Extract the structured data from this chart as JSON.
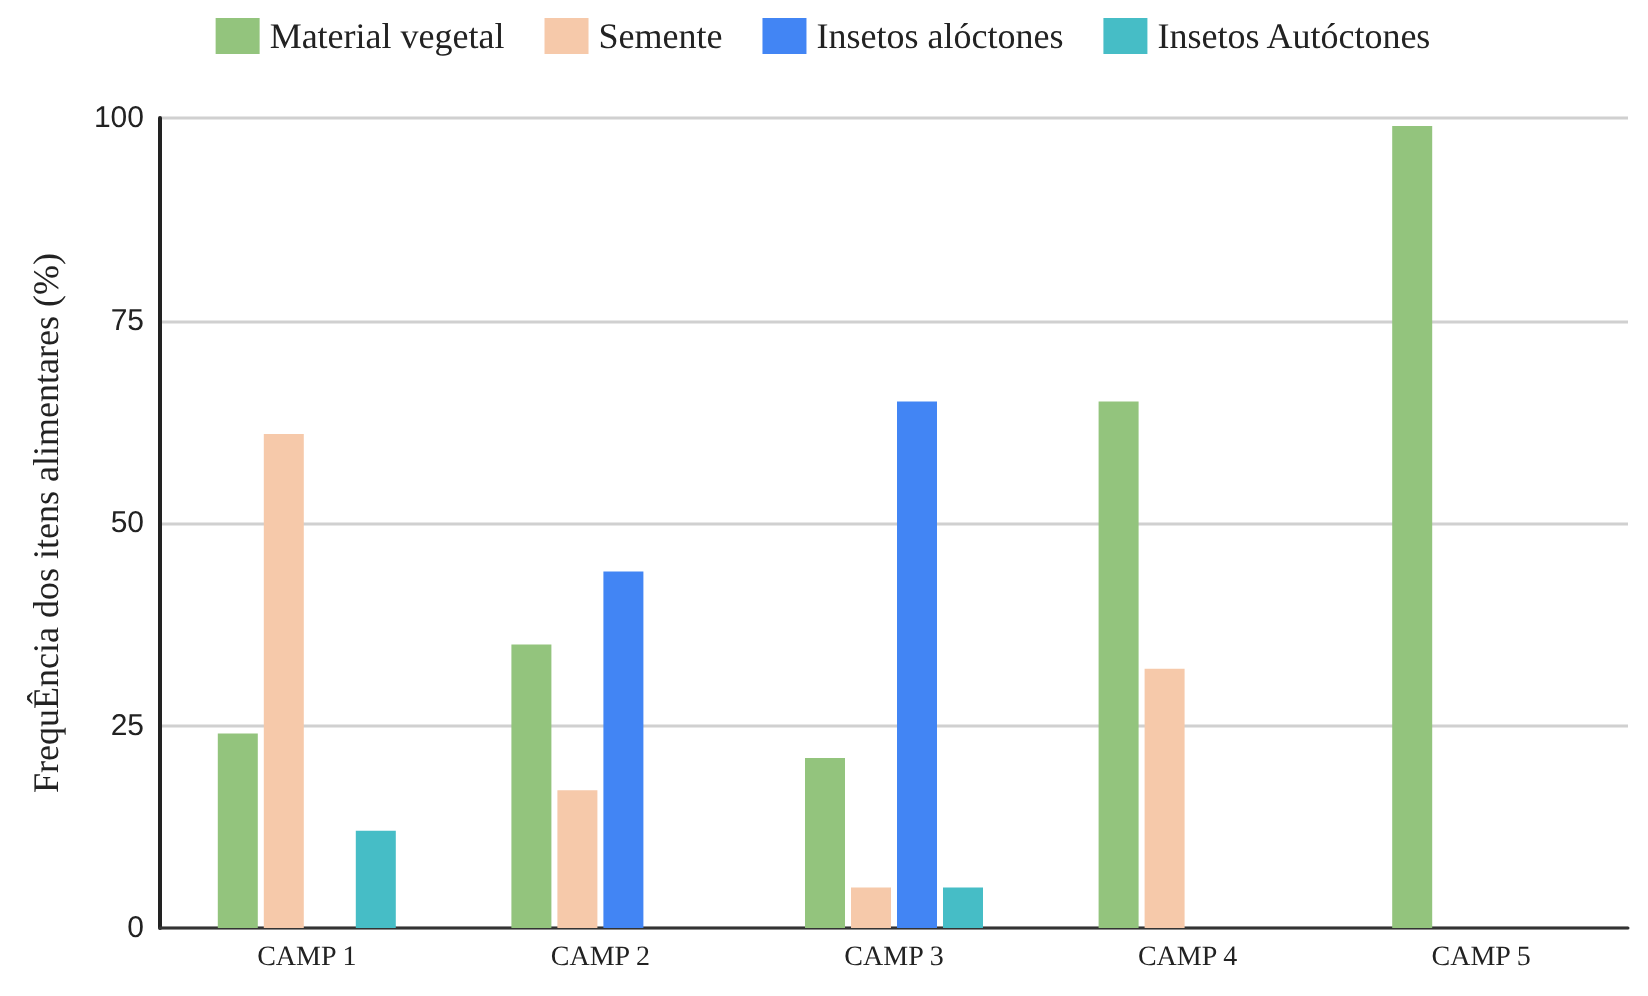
{
  "chart_data": {
    "type": "bar",
    "ylabel": "FrequÊncia dos itens alimentares (%)",
    "categories": [
      "CAMP 1",
      "CAMP 2",
      "CAMP 3",
      "CAMP 4",
      "CAMP 5"
    ],
    "series": [
      {
        "name": "Material vegetal",
        "color": "#93c47d",
        "values": [
          24,
          35,
          21,
          65,
          99
        ]
      },
      {
        "name": "Semente",
        "color": "#f6c9aa",
        "values": [
          61,
          17,
          5,
          32,
          0
        ]
      },
      {
        "name": "Insetos alóctones",
        "color": "#4285f4",
        "values": [
          0,
          44,
          65,
          0,
          0
        ]
      },
      {
        "name": "Insetos Autóctones",
        "color": "#46bdc6",
        "values": [
          12,
          0,
          5,
          0,
          0
        ]
      }
    ],
    "ylim": [
      0,
      100
    ],
    "yticks": [
      0,
      25,
      50,
      75,
      100
    ],
    "grid": "y",
    "legend": "top"
  }
}
